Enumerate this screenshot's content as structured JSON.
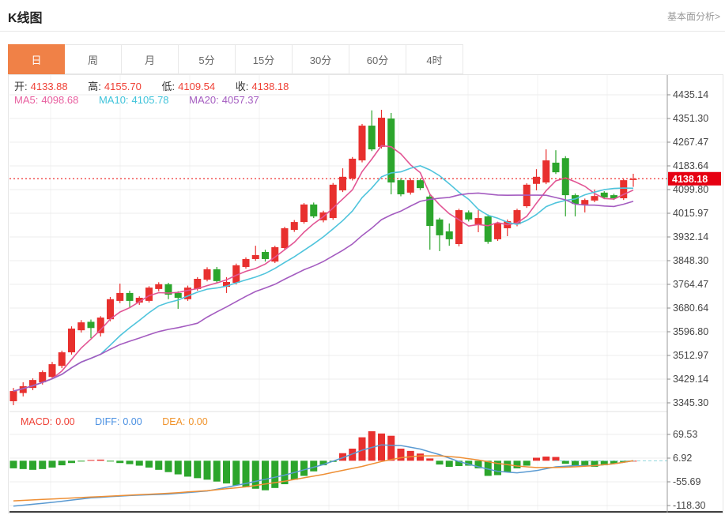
{
  "header": {
    "title": "K线图",
    "link": "基本面分析>"
  },
  "tabs": {
    "items": [
      "日",
      "周",
      "月",
      "5分",
      "15分",
      "30分",
      "60分",
      "4时"
    ],
    "active_index": 0
  },
  "ohlc_legend": {
    "open_label": "开:",
    "open": "4133.88",
    "high_label": "高:",
    "high": "4155.70",
    "low_label": "低:",
    "low": "4109.54",
    "close_label": "收:",
    "close": "4138.18"
  },
  "ma_legend": {
    "ma5_label": "MA5:",
    "ma5": "4098.68",
    "ma10_label": "MA10:",
    "ma10": "4105.78",
    "ma20_label": "MA20:",
    "ma20": "4057.37"
  },
  "macd_legend": {
    "macd_label": "MACD:",
    "macd": "0.00",
    "diff_label": "DIFF:",
    "diff": "0.00",
    "dea_label": "DEA:",
    "dea": "0.00"
  },
  "price_tag": "4138.18",
  "colors": {
    "up": "#e8302e",
    "down": "#2ca52c",
    "tab_active": "#f08147",
    "ma5": "#e25594",
    "ma10": "#4fc4dc",
    "ma20": "#a45cc0",
    "diff": "#5a9ad2",
    "dea": "#ee8f35",
    "grid": "#ececec",
    "grid_v": "#f3f3f3",
    "axis": "#999",
    "tick_text": "#444",
    "price_line": "#f03030",
    "price_tag_bg": "#e60012",
    "zero_dash": "#8fd8dc",
    "bottom_line": "#414141"
  },
  "chart_data": {
    "type": "candlestick+macd",
    "price_axis_ticks": [
      "4435.14",
      "4351.30",
      "4267.47",
      "4183.64",
      "4099.80",
      "4015.97",
      "3932.14",
      "3848.30",
      "3764.47",
      "3680.64",
      "3596.80",
      "3512.97",
      "3429.14",
      "3345.30"
    ],
    "macd_axis_ticks": [
      "69.53",
      "6.92",
      "-55.69",
      "-118.30"
    ],
    "current_price": 4138.18,
    "candles_ohlc": [
      [
        3351,
        3398,
        3337,
        3387
      ],
      [
        3380,
        3418,
        3368,
        3404
      ],
      [
        3398,
        3432,
        3390,
        3426
      ],
      [
        3418,
        3460,
        3410,
        3454
      ],
      [
        3437,
        3490,
        3430,
        3482
      ],
      [
        3476,
        3530,
        3468,
        3524
      ],
      [
        3524,
        3616,
        3516,
        3608
      ],
      [
        3602,
        3638,
        3594,
        3630
      ],
      [
        3632,
        3640,
        3574,
        3610
      ],
      [
        3592,
        3652,
        3580,
        3647
      ],
      [
        3641,
        3720,
        3634,
        3712
      ],
      [
        3706,
        3767,
        3698,
        3734
      ],
      [
        3734,
        3742,
        3684,
        3706
      ],
      [
        3700,
        3722,
        3692,
        3717
      ],
      [
        3706,
        3758,
        3700,
        3753
      ],
      [
        3748,
        3772,
        3740,
        3765
      ],
      [
        3765,
        3770,
        3712,
        3728
      ],
      [
        3734,
        3740,
        3678,
        3717
      ],
      [
        3712,
        3760,
        3706,
        3753
      ],
      [
        3748,
        3790,
        3742,
        3784
      ],
      [
        3781,
        3825,
        3775,
        3818
      ],
      [
        3818,
        3826,
        3768,
        3776
      ],
      [
        3756,
        3790,
        3734,
        3773
      ],
      [
        3770,
        3838,
        3764,
        3832
      ],
      [
        3826,
        3860,
        3820,
        3854
      ],
      [
        3854,
        3901,
        3848,
        3868
      ],
      [
        3879,
        3887,
        3845,
        3854
      ],
      [
        3845,
        3901,
        3840,
        3896
      ],
      [
        3893,
        3968,
        3887,
        3963
      ],
      [
        3957,
        3992,
        3950,
        3985
      ],
      [
        3985,
        4052,
        3979,
        4047
      ],
      [
        4047,
        4054,
        3999,
        4005
      ],
      [
        3991,
        4025,
        3984,
        4019
      ],
      [
        3999,
        4123,
        3993,
        4117
      ],
      [
        4097,
        4175,
        4091,
        4145
      ],
      [
        4139,
        4215,
        4132,
        4209
      ],
      [
        4203,
        4332,
        4196,
        4326
      ],
      [
        4326,
        4380,
        4236,
        4242
      ],
      [
        4251,
        4382,
        4245,
        4354
      ],
      [
        4351,
        4371,
        4083,
        4125
      ],
      [
        4133,
        4140,
        4076,
        4083
      ],
      [
        4089,
        4140,
        4082,
        4133
      ],
      [
        4133,
        4139,
        4098,
        4105
      ],
      [
        4075,
        4082,
        3887,
        3971
      ],
      [
        3994,
        4000,
        3882,
        3938
      ],
      [
        3952,
        3980,
        3901,
        3924
      ],
      [
        3907,
        4032,
        3899,
        4027
      ],
      [
        4019,
        4026,
        3987,
        3994
      ],
      [
        3977,
        4027,
        3949,
        3999
      ],
      [
        4005,
        4012,
        3908,
        3915
      ],
      [
        3924,
        3986,
        3918,
        3980
      ],
      [
        3963,
        3994,
        3935,
        3988
      ],
      [
        3977,
        4032,
        3970,
        4027
      ],
      [
        4041,
        4122,
        4035,
        4117
      ],
      [
        4120,
        4172,
        4097,
        4145
      ],
      [
        4125,
        4242,
        4119,
        4203
      ],
      [
        4195,
        4239,
        4155,
        4161
      ],
      [
        4211,
        4218,
        4005,
        4080
      ],
      [
        4080,
        4086,
        4005,
        4049
      ],
      [
        4047,
        4068,
        4019,
        4063
      ],
      [
        4061,
        4100,
        4055,
        4077
      ],
      [
        4089,
        4094,
        4066,
        4072
      ],
      [
        4080,
        4085,
        4063,
        4069
      ],
      [
        4069,
        4138,
        4063,
        4133
      ],
      [
        4133.88,
        4155.7,
        4109.54,
        4138.18
      ]
    ],
    "ma_periods": [
      5,
      10,
      20
    ],
    "macd_hist": [
      -20,
      -22,
      -24,
      -22,
      -18,
      -12,
      -6,
      -2,
      2,
      3,
      -2,
      -6,
      -9,
      -13,
      -18,
      -24,
      -30,
      -36,
      -42,
      -46,
      -50,
      -55,
      -60,
      -65,
      -70,
      -74,
      -78,
      -72,
      -62,
      -50,
      -40,
      -28,
      -12,
      -3,
      20,
      32,
      62,
      78,
      72,
      66,
      32,
      26,
      19,
      6,
      -10,
      -16,
      -14,
      -13,
      -20,
      -40,
      -38,
      -30,
      -20,
      -13,
      8,
      11,
      10,
      -8,
      -12,
      -14,
      -16,
      -12,
      -8,
      -4,
      0
    ],
    "diff_points": [
      [
        0,
        -120
      ],
      [
        4,
        -110
      ],
      [
        8,
        -98
      ],
      [
        12,
        -92
      ],
      [
        16,
        -88
      ],
      [
        20,
        -80
      ],
      [
        24,
        -60
      ],
      [
        28,
        -38
      ],
      [
        32,
        -10
      ],
      [
        34,
        8
      ],
      [
        36,
        28
      ],
      [
        38,
        42
      ],
      [
        40,
        40
      ],
      [
        42,
        31
      ],
      [
        44,
        16
      ],
      [
        46,
        -2
      ],
      [
        48,
        -16
      ],
      [
        50,
        -28
      ],
      [
        52,
        -32
      ],
      [
        54,
        -26
      ],
      [
        56,
        -16
      ],
      [
        58,
        -13
      ],
      [
        60,
        -13
      ],
      [
        62,
        -8
      ],
      [
        64,
        0
      ]
    ],
    "dea_points": [
      [
        0,
        -106
      ],
      [
        4,
        -101
      ],
      [
        8,
        -96
      ],
      [
        12,
        -91
      ],
      [
        16,
        -86
      ],
      [
        20,
        -79
      ],
      [
        24,
        -69
      ],
      [
        28,
        -54
      ],
      [
        32,
        -36
      ],
      [
        36,
        -15
      ],
      [
        38,
        -2
      ],
      [
        40,
        8
      ],
      [
        42,
        13
      ],
      [
        44,
        13
      ],
      [
        46,
        9
      ],
      [
        48,
        2
      ],
      [
        50,
        -7
      ],
      [
        52,
        -14
      ],
      [
        54,
        -18
      ],
      [
        56,
        -18
      ],
      [
        58,
        -16
      ],
      [
        60,
        -13
      ],
      [
        62,
        -8
      ],
      [
        64,
        0
      ]
    ]
  }
}
